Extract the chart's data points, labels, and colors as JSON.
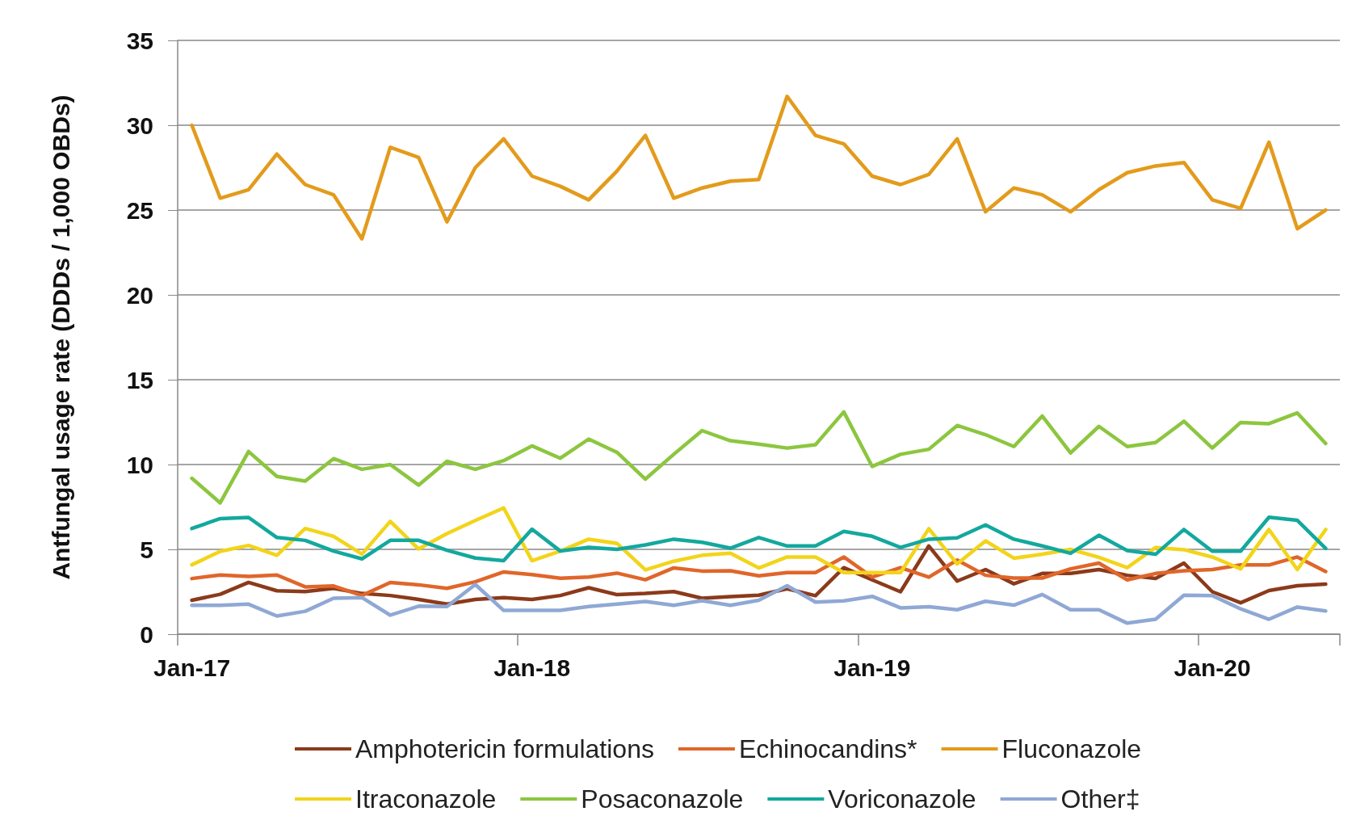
{
  "chart_data": {
    "type": "line",
    "ylabel": "Antfungal usage rate (DDDs / 1,000 OBDs)",
    "categories": [
      "Jan-17",
      null,
      null,
      null,
      null,
      null,
      null,
      null,
      null,
      null,
      null,
      null,
      "Jan-18",
      null,
      null,
      null,
      null,
      null,
      null,
      null,
      null,
      null,
      null,
      null,
      "Jan-19",
      null,
      null,
      null,
      null,
      null,
      null,
      null,
      null,
      null,
      null,
      null,
      "Jan-20",
      null,
      null,
      null,
      null
    ],
    "series": [
      {
        "name": "Amphotericin formulations",
        "color": "#8b3a1a",
        "values": [
          2.0,
          2.35,
          3.05,
          2.56,
          2.51,
          2.7,
          2.4,
          2.28,
          2.05,
          1.77,
          2.05,
          2.16,
          2.05,
          2.28,
          2.74,
          2.33,
          2.4,
          2.51,
          2.12,
          2.21,
          2.3,
          2.68,
          2.27,
          3.92,
          3.2,
          2.5,
          5.2,
          3.13,
          3.81,
          2.97,
          3.58,
          3.58,
          3.81,
          3.47,
          3.29,
          4.19,
          2.5,
          1.85,
          2.57,
          2.86,
          2.95
        ]
      },
      {
        "name": "Echinocandins*",
        "color": "#e0662a",
        "values": [
          3.28,
          3.49,
          3.4,
          3.49,
          2.79,
          2.84,
          2.28,
          3.05,
          2.91,
          2.7,
          3.09,
          3.67,
          3.51,
          3.3,
          3.37,
          3.6,
          3.21,
          3.91,
          3.72,
          3.74,
          3.44,
          3.63,
          3.63,
          4.55,
          3.36,
          3.92,
          3.36,
          4.37,
          3.47,
          3.31,
          3.31,
          3.85,
          4.19,
          3.2,
          3.58,
          3.74,
          3.81,
          4.08,
          4.08,
          4.55,
          3.69
        ]
      },
      {
        "name": "Fluconazole",
        "color": "#e39b1c",
        "values": [
          30,
          25.7,
          26.2,
          28.3,
          26.5,
          25.9,
          23.3,
          28.7,
          28.1,
          24.3,
          27.5,
          29.2,
          27,
          26.4,
          25.6,
          27.3,
          29.4,
          25.7,
          26.3,
          26.7,
          26.8,
          31.7,
          29.4,
          28.9,
          27,
          26.5,
          27.1,
          29.2,
          24.9,
          26.3,
          25.9,
          24.9,
          26.2,
          27.2,
          27.6,
          27.8,
          25.6,
          25.1,
          29,
          23.9,
          25
        ]
      },
      {
        "name": "Itraconazole",
        "color": "#f2d41a",
        "values": [
          4.09,
          4.88,
          5.23,
          4.65,
          6.23,
          5.77,
          4.72,
          6.65,
          5.02,
          5.93,
          6.7,
          7.44,
          4.33,
          4.9,
          5.6,
          5.35,
          3.79,
          4.3,
          4.65,
          4.77,
          3.9,
          4.55,
          4.55,
          3.63,
          3.63,
          3.63,
          6.22,
          4.14,
          5.5,
          4.48,
          4.71,
          5.0,
          4.53,
          3.92,
          5.11,
          4.98,
          4.55,
          3.85,
          6.17,
          3.81,
          6.17
        ]
      },
      {
        "name": "Posaconazole",
        "color": "#8cc63f",
        "values": [
          9.19,
          7.74,
          10.77,
          9.3,
          9.02,
          10.35,
          9.72,
          10.0,
          8.79,
          10.19,
          9.72,
          10.23,
          11.1,
          10.37,
          11.5,
          10.72,
          9.14,
          10.6,
          12.0,
          11.4,
          11.2,
          10.97,
          11.17,
          13.1,
          9.89,
          10.6,
          10.9,
          12.3,
          11.76,
          11.06,
          12.86,
          10.68,
          12.25,
          11.06,
          11.3,
          12.55,
          10.97,
          12.48,
          12.41,
          13.04,
          11.24
        ]
      },
      {
        "name": "Voriconazole",
        "color": "#13a89e",
        "values": [
          6.23,
          6.81,
          6.88,
          5.7,
          5.53,
          4.9,
          4.44,
          5.53,
          5.53,
          4.95,
          4.49,
          4.33,
          6.19,
          4.9,
          5.12,
          5.0,
          5.26,
          5.6,
          5.42,
          5.07,
          5.7,
          5.2,
          5.2,
          6.06,
          5.77,
          5.11,
          5.6,
          5.68,
          6.44,
          5.6,
          5.2,
          4.77,
          5.83,
          4.93,
          4.71,
          6.17,
          4.89,
          4.89,
          6.89,
          6.71,
          5.05
        ]
      },
      {
        "name": "Other‡",
        "color": "#8fa8d4",
        "values": [
          1.7,
          1.7,
          1.77,
          1.07,
          1.35,
          2.12,
          2.16,
          1.12,
          1.65,
          1.63,
          2.93,
          1.4,
          1.4,
          1.4,
          1.63,
          1.77,
          1.93,
          1.7,
          1.98,
          1.7,
          2.0,
          2.86,
          1.89,
          1.96,
          2.23,
          1.55,
          1.62,
          1.44,
          1.94,
          1.71,
          2.34,
          1.44,
          1.44,
          0.65,
          0.88,
          2.3,
          2.27,
          1.49,
          0.88,
          1.6,
          1.37
        ]
      }
    ],
    "ylim": [
      0,
      35
    ],
    "yticks": [
      0,
      5,
      10,
      15,
      20,
      25,
      30,
      35
    ],
    "grid": "y",
    "legend": "bottom",
    "marker": "none",
    "line_style": "solid"
  }
}
